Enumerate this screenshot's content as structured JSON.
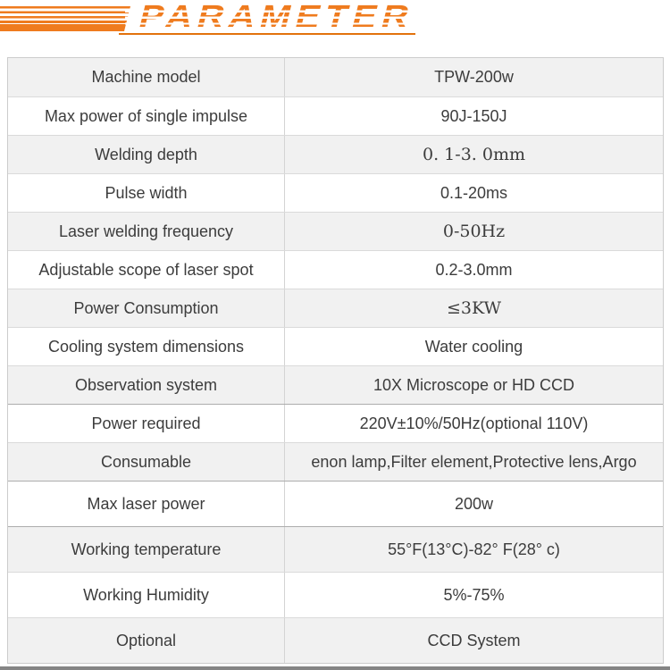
{
  "logo": {
    "text": "PARAMETER",
    "accent_color": "#ef7b1e"
  },
  "table": {
    "rows": [
      {
        "label": "Machine model",
        "value": "TPW-200w"
      },
      {
        "label": "Max power of single impulse",
        "value": "90J-150J"
      },
      {
        "label": "Welding depth",
        "value": "0. 1-3. 0mm"
      },
      {
        "label": "Pulse width",
        "value": "0.1-20ms"
      },
      {
        "label": "Laser welding frequency",
        "value": "0-50Hz"
      },
      {
        "label": "Adjustable scope of laser spot",
        "value": "0.2-3.0mm"
      },
      {
        "label": "Power Consumption",
        "value": "≤3KW"
      },
      {
        "label": "Cooling system dimensions",
        "value": "Water cooling"
      },
      {
        "label": "Observation system",
        "value": "10X Microscope or HD CCD"
      },
      {
        "label": "Power required",
        "value": "220V±10%/50Hz(optional 110V)"
      },
      {
        "label": "Consumable",
        "value": "enon lamp,Filter element,Protective lens,Argo"
      },
      {
        "label": "Max laser power",
        "value": "200w"
      },
      {
        "label": "Working temperature",
        "value": "55°F(13°C)-82° F(28° c)"
      },
      {
        "label": "Working Humidity",
        "value": "5%-75%"
      },
      {
        "label": "Optional",
        "value": "CCD System"
      }
    ]
  }
}
